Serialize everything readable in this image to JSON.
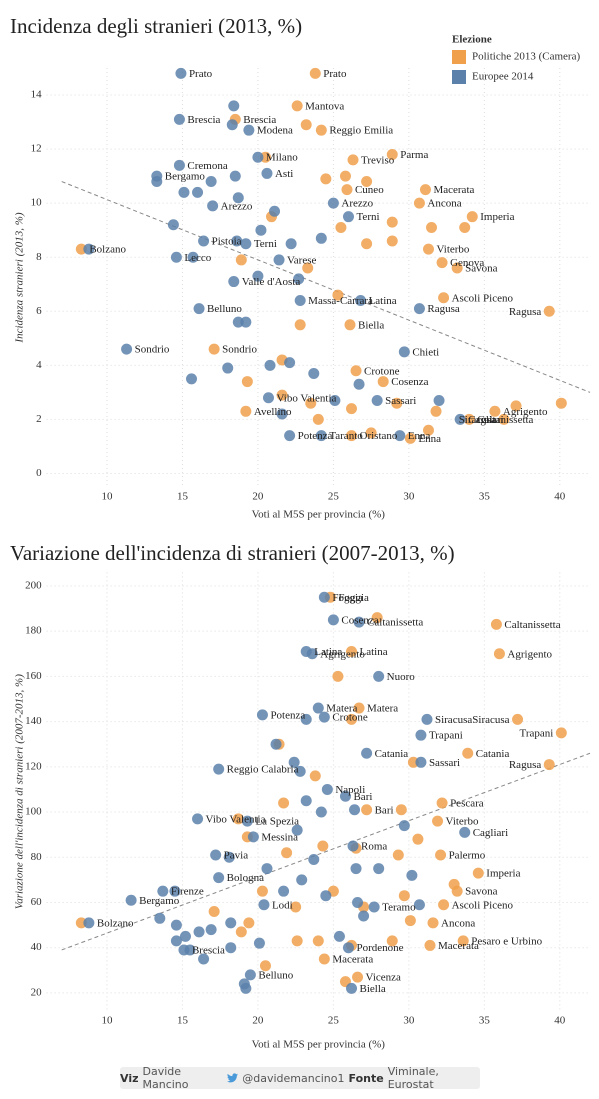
{
  "chart_data": [
    {
      "type": "scatter",
      "title": "Incidenza degli stranieri (2013, %)",
      "x_label": "Voti al M5S per provincia (%)",
      "y_label": "Incidenza stranieri (2013, %)",
      "xlim": [
        6,
        42
      ],
      "xticks": [
        10,
        15,
        20,
        25,
        30,
        35,
        40
      ],
      "ylim": [
        -0.5,
        15
      ],
      "yticks": [
        0,
        2,
        4,
        6,
        8,
        10,
        12,
        14
      ],
      "grid": true,
      "legend": "top-right",
      "legend_title": "Elezione",
      "trend": {
        "x": [
          7,
          42
        ],
        "y": [
          10.8,
          3.0
        ]
      },
      "series": [
        {
          "name": "Politiche 2013 (Camera)",
          "color": "#f0a04b",
          "x": [
            23.8,
            22.6,
            18.5,
            23.2,
            24.2,
            28.9,
            26.3,
            20.5,
            24.5,
            25.8,
            27.2,
            31.1,
            25.9,
            30.7,
            34.2,
            31.5,
            33.7,
            28.9,
            20.9,
            25.5,
            27.2,
            28.9,
            31.3,
            32.2,
            33.2,
            32.3,
            39.3,
            8.3,
            18.9,
            23.3,
            25.3,
            26.1,
            22.8,
            17.1,
            21.6,
            26.5,
            28.3,
            19.3,
            21.6,
            19.2,
            23.5,
            26.2,
            29.2,
            31.8,
            35.7,
            37.1,
            40.1,
            36.3,
            34.0,
            31.3,
            26.2,
            30.1,
            24.0,
            27.5
          ],
          "values": [
            14.8,
            13.6,
            13.1,
            12.9,
            12.7,
            11.8,
            11.6,
            11.7,
            10.9,
            11.0,
            10.8,
            10.5,
            10.5,
            10.0,
            9.5,
            9.1,
            9.1,
            9.3,
            9.5,
            9.1,
            8.5,
            8.6,
            8.3,
            7.8,
            7.6,
            6.5,
            6.0,
            8.3,
            7.9,
            7.6,
            6.6,
            5.5,
            5.5,
            4.6,
            4.2,
            3.8,
            3.4,
            3.4,
            2.9,
            2.3,
            2.6,
            2.4,
            2.6,
            2.3,
            2.3,
            2.5,
            2.6,
            2.0,
            2.0,
            1.6,
            1.4,
            1.3,
            2.0,
            1.5
          ],
          "labels": [
            "Prato",
            "Mantova",
            "Brescia",
            null,
            "Reggio Emilia",
            "Parma",
            "Treviso",
            null,
            null,
            null,
            null,
            "Macerata",
            "Cuneo",
            "Ancona",
            "Imperia",
            null,
            null,
            null,
            null,
            null,
            null,
            null,
            "Viterbo",
            "Genova",
            "Savona",
            "Ascoli Piceno",
            "Ragusa",
            "Bolzano",
            null,
            null,
            null,
            "Biella",
            null,
            "Sondrio",
            null,
            "Crotone",
            "Cosenza",
            null,
            null,
            "Avellino",
            null,
            null,
            null,
            null,
            "Agrigento",
            null,
            null,
            "Siracusa",
            "Caltanissetta",
            null,
            "Oristano",
            "Enna",
            null,
            null
          ]
        },
        {
          "name": "Europee 2014",
          "color": "#5b80aa",
          "x": [
            14.9,
            18.4,
            14.8,
            18.3,
            19.4,
            20.0,
            14.8,
            13.3,
            13.3,
            16.9,
            18.5,
            20.6,
            15.1,
            16.0,
            18.7,
            17.0,
            25.0,
            14.4,
            16.4,
            18.6,
            20.2,
            21.1,
            22.2,
            19.2,
            24.2,
            26.0,
            14.6,
            15.7,
            21.4,
            18.4,
            20.0,
            22.7,
            22.8,
            26.8,
            30.7,
            16.1,
            18.7,
            19.2,
            11.3,
            15.6,
            18.0,
            20.8,
            22.1,
            23.7,
            29.7,
            20.7,
            26.7,
            25.1,
            27.9,
            32.0,
            33.4,
            21.6,
            22.1,
            24.2,
            29.4,
            8.8
          ],
          "values": [
            14.8,
            13.6,
            13.1,
            12.9,
            12.7,
            11.7,
            11.4,
            11.0,
            10.8,
            10.8,
            11.0,
            11.1,
            10.4,
            10.4,
            10.2,
            9.9,
            10.0,
            9.2,
            8.6,
            8.6,
            9.0,
            9.7,
            8.5,
            8.5,
            8.7,
            9.5,
            8.0,
            8.0,
            7.9,
            7.1,
            7.3,
            7.2,
            6.4,
            6.4,
            6.1,
            6.1,
            5.6,
            5.6,
            4.6,
            3.5,
            3.9,
            4.0,
            4.1,
            3.7,
            4.5,
            2.8,
            3.3,
            2.7,
            2.7,
            2.7,
            2.0,
            2.2,
            1.4,
            1.4,
            1.4,
            8.3
          ],
          "labels": [
            "Prato",
            null,
            "Brescia",
            null,
            "Modena",
            "Milano",
            "Cremona",
            "Bergamo",
            null,
            null,
            null,
            "Asti",
            null,
            null,
            null,
            "Arezzo",
            "Arezzo",
            null,
            "Pistoia",
            null,
            null,
            null,
            null,
            "Terni",
            null,
            "Terni",
            "Lecco",
            null,
            "Varese",
            "Valle d'Aosta",
            null,
            null,
            "Massa-Carrara",
            "Latina",
            "Ragusa",
            "Belluno",
            null,
            null,
            "Sondrio",
            null,
            null,
            null,
            null,
            null,
            "Chieti",
            "Vibo Valentia",
            null,
            null,
            "Sassari",
            null,
            "Cagliari",
            null,
            "Potenza",
            "Taranto",
            "Enna",
            null
          ]
        }
      ]
    },
    {
      "type": "scatter",
      "title": "Variazione dell'incidenza di stranieri (2007-2013, %)",
      "x_label": "Voti al M5S per provincia (%)",
      "y_label": "Variazione dell'incidenza di stranieri (2007-2013, %)",
      "xlim": [
        6,
        42
      ],
      "xticks": [
        10,
        15,
        20,
        25,
        30,
        35,
        40
      ],
      "ylim": [
        12,
        206
      ],
      "yticks": [
        20,
        40,
        60,
        80,
        100,
        120,
        140,
        160,
        180,
        200
      ],
      "grid": true,
      "trend": {
        "x": [
          7,
          42
        ],
        "y": [
          39,
          126
        ]
      },
      "series": [
        {
          "name": "Politiche 2013 (Camera)",
          "color": "#f0a04b",
          "x": [
            24.8,
            27.9,
            35.8,
            26.2,
            36.0,
            25.3,
            26.7,
            26.2,
            37.2,
            40.1,
            21.4,
            33.9,
            23.8,
            30.3,
            39.3,
            18.7,
            21.7,
            27.2,
            29.5,
            32.2,
            31.9,
            30.6,
            19.3,
            21.9,
            24.3,
            26.5,
            29.3,
            32.1,
            34.6,
            33.0,
            33.2,
            32.3,
            30.1,
            31.6,
            33.6,
            31.4,
            28.9,
            26.2,
            24.0,
            22.6,
            17.1,
            8.3,
            18.9,
            19.4,
            24.4,
            26.6,
            25.8,
            20.5,
            29.7,
            27.0,
            25.0,
            22.5,
            20.3
          ],
          "values": [
            195,
            186,
            183,
            171,
            170,
            160,
            146,
            141,
            141,
            135,
            130,
            126,
            116,
            122,
            121,
            97,
            104,
            101,
            101,
            104,
            96,
            88,
            89,
            82,
            85,
            84,
            81,
            81,
            73,
            68,
            65,
            59,
            52,
            51,
            43,
            41,
            43,
            41,
            43,
            43,
            56,
            51,
            47,
            51,
            35,
            27,
            25,
            32,
            63,
            58,
            65,
            58,
            65
          ],
          "labels": [
            "Foggia",
            null,
            "Caltanissetta",
            "Latina",
            "Agrigento",
            null,
            "Matera",
            null,
            "Siracusa",
            "Trapani",
            null,
            "Catania",
            null,
            null,
            "Ragusa",
            null,
            null,
            "Bari",
            null,
            "Pescara",
            "Viterbo",
            null,
            null,
            null,
            null,
            null,
            null,
            "Palermo",
            "Imperia",
            null,
            "Savona",
            "Ascoli Piceno",
            null,
            "Ancona",
            "Pesaro e Urbino",
            "Macerata",
            null,
            null,
            null,
            null,
            null,
            null,
            null,
            null,
            "Macerata",
            "Vicenza",
            null,
            null,
            null,
            null,
            null,
            null,
            null
          ]
        },
        {
          "name": "Europee 2014",
          "color": "#5b80aa",
          "x": [
            24.4,
            25.0,
            26.7,
            23.2,
            23.6,
            28.0,
            24.0,
            23.2,
            24.4,
            20.3,
            31.2,
            30.8,
            21.2,
            27.2,
            30.8,
            22.4,
            22.8,
            17.4,
            24.6,
            23.2,
            25.8,
            16.0,
            19.3,
            24.2,
            26.4,
            29.7,
            19.7,
            22.6,
            17.2,
            18.1,
            17.4,
            13.7,
            14.5,
            11.6,
            13.5,
            14.6,
            16.1,
            16.9,
            18.2,
            20.4,
            14.6,
            15.2,
            15.1,
            15.5,
            16.4,
            18.2,
            20.1,
            19.5,
            19.2,
            19.1,
            26.2,
            25.4,
            21.7,
            22.9,
            23.7,
            26.5,
            28.0,
            30.2,
            33.7,
            26.6,
            30.7,
            27.0,
            24.5,
            20.6,
            26.3,
            27.7,
            26.0,
            8.8
          ],
          "values": [
            195,
            185,
            184,
            171,
            170,
            160,
            146,
            141,
            142,
            143,
            141,
            134,
            130,
            126,
            122,
            122,
            118,
            119,
            110,
            105,
            107,
            97,
            96,
            100,
            101,
            94,
            89,
            92,
            81,
            80,
            71,
            65,
            65,
            61,
            53,
            50,
            47,
            48,
            51,
            59,
            43,
            45,
            39,
            39,
            35,
            40,
            42,
            28,
            22,
            24,
            22,
            45,
            65,
            70,
            79,
            75,
            75,
            72,
            91,
            60,
            59,
            54,
            63,
            75,
            85,
            58,
            40,
            51
          ],
          "labels": [
            "Foggia",
            "Cosenza",
            "Caltanissetta",
            "Latina",
            "Agrigento",
            "Nuoro",
            "Matera",
            null,
            "Crotone",
            "Potenza",
            "Siracusa",
            "Trapani",
            null,
            "Catania",
            "Sassari",
            null,
            null,
            "Reggio Calabria",
            "Napoli",
            null,
            "Bari",
            "Vibo Valentia",
            "La Spezia",
            null,
            null,
            null,
            "Messina",
            null,
            "Pavia",
            null,
            "Bologna",
            "Firenze",
            null,
            "Bergamo",
            null,
            null,
            null,
            null,
            null,
            "Lodi",
            null,
            null,
            "Brescia",
            null,
            null,
            null,
            null,
            "Belluno",
            null,
            null,
            "Biella",
            null,
            null,
            null,
            null,
            null,
            null,
            null,
            "Cagliari",
            null,
            null,
            null,
            null,
            null,
            "Roma",
            "Teramo",
            "Pordenone",
            "Bolzano"
          ]
        }
      ]
    }
  ],
  "footer": {
    "viz": "Viz",
    "author": "Davide Mancino",
    "handle": "@davidemancino1",
    "source_label": "Fonte",
    "source": "Viminale, Eurostat"
  }
}
